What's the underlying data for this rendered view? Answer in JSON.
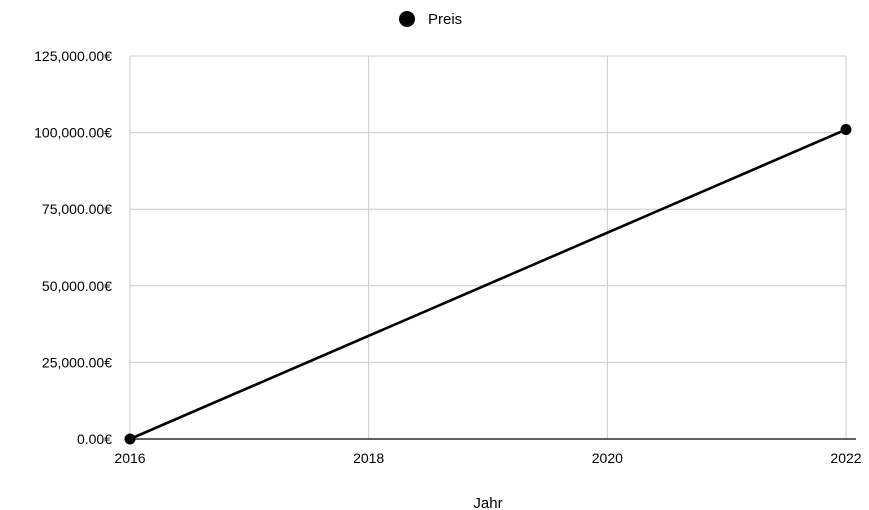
{
  "chart_data": {
    "type": "line",
    "title": "",
    "xlabel": "Jahr",
    "ylabel": "",
    "x": [
      2016,
      2022
    ],
    "series": [
      {
        "name": "Preis",
        "values": [
          0,
          101000
        ],
        "color": "#000000"
      }
    ],
    "xlim": [
      2016,
      2022
    ],
    "ylim": [
      0,
      125000
    ],
    "x_ticks": [
      2016,
      2018,
      2020,
      2022
    ],
    "y_ticks": [
      0,
      25000,
      50000,
      75000,
      100000,
      125000
    ],
    "x_tick_labels": [
      "2016",
      "2018",
      "2020",
      "2022"
    ],
    "y_tick_labels": [
      "0.00€",
      "25,000.00€",
      "50,000.00€",
      "75,000.00€",
      "100,000.00€",
      "125,000.00€"
    ],
    "grid": true,
    "legend": "top-center",
    "markers": true,
    "colors": {
      "series": "#000000",
      "grid": "#cccccc",
      "axis": "#000000",
      "background": "#ffffff"
    }
  }
}
